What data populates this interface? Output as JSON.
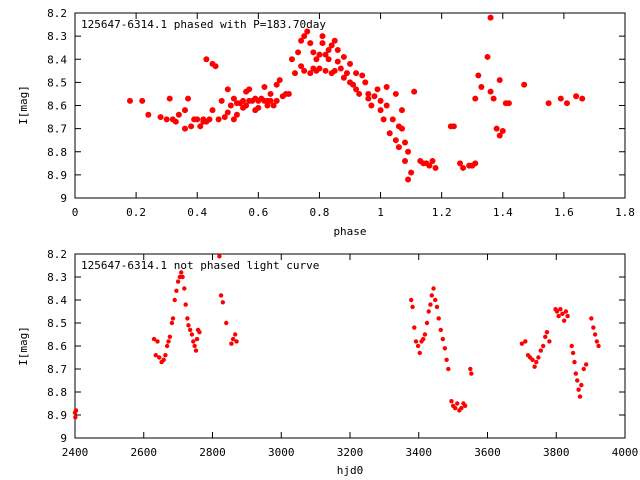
{
  "chart_data": [
    {
      "type": "scatter",
      "title": "125647-6314.1 phased with P=183.70day",
      "xlabel": "phase",
      "ylabel": "I[mag]",
      "xlim": [
        0,
        1.8
      ],
      "ylim": [
        9,
        8.2
      ],
      "y_inverted": true,
      "grid": false,
      "marker_color": "#ff0000",
      "xticks": [
        "0",
        "0.2",
        "0.4",
        "0.6",
        "0.8",
        "1",
        "1.2",
        "1.4",
        "1.6",
        "1.8"
      ],
      "yticks": [
        "8.2",
        "8.3",
        "8.4",
        "8.5",
        "8.6",
        "8.7",
        "8.8",
        "8.9",
        "9"
      ],
      "points": [
        [
          0.18,
          8.58
        ],
        [
          0.22,
          8.58
        ],
        [
          0.24,
          8.64
        ],
        [
          0.28,
          8.65
        ],
        [
          0.3,
          8.66
        ],
        [
          0.31,
          8.57
        ],
        [
          0.32,
          8.66
        ],
        [
          0.33,
          8.67
        ],
        [
          0.34,
          8.64
        ],
        [
          0.36,
          8.62
        ],
        [
          0.36,
          8.7
        ],
        [
          0.37,
          8.57
        ],
        [
          0.38,
          8.69
        ],
        [
          0.39,
          8.66
        ],
        [
          0.4,
          8.66
        ],
        [
          0.41,
          8.69
        ],
        [
          0.42,
          8.66
        ],
        [
          0.42,
          8.67
        ],
        [
          0.43,
          8.67
        ],
        [
          0.43,
          8.4
        ],
        [
          0.44,
          8.66
        ],
        [
          0.45,
          8.62
        ],
        [
          0.45,
          8.42
        ],
        [
          0.46,
          8.43
        ],
        [
          0.47,
          8.66
        ],
        [
          0.48,
          8.58
        ],
        [
          0.49,
          8.65
        ],
        [
          0.5,
          8.53
        ],
        [
          0.5,
          8.63
        ],
        [
          0.51,
          8.6
        ],
        [
          0.52,
          8.57
        ],
        [
          0.52,
          8.66
        ],
        [
          0.53,
          8.59
        ],
        [
          0.53,
          8.64
        ],
        [
          0.54,
          8.59
        ],
        [
          0.55,
          8.58
        ],
        [
          0.55,
          8.61
        ],
        [
          0.56,
          8.54
        ],
        [
          0.56,
          8.6
        ],
        [
          0.57,
          8.53
        ],
        [
          0.57,
          8.58
        ],
        [
          0.58,
          8.58
        ],
        [
          0.59,
          8.57
        ],
        [
          0.59,
          8.62
        ],
        [
          0.6,
          8.58
        ],
        [
          0.6,
          8.61
        ],
        [
          0.61,
          8.57
        ],
        [
          0.62,
          8.58
        ],
        [
          0.62,
          8.52
        ],
        [
          0.63,
          8.58
        ],
        [
          0.63,
          8.6
        ],
        [
          0.64,
          8.58
        ],
        [
          0.64,
          8.55
        ],
        [
          0.65,
          8.6
        ],
        [
          0.66,
          8.58
        ],
        [
          0.66,
          8.51
        ],
        [
          0.67,
          8.49
        ],
        [
          0.68,
          8.56
        ],
        [
          0.69,
          8.55
        ],
        [
          0.7,
          8.55
        ],
        [
          0.71,
          8.4
        ],
        [
          0.72,
          8.46
        ],
        [
          0.73,
          8.37
        ],
        [
          0.74,
          8.43
        ],
        [
          0.74,
          8.32
        ],
        [
          0.75,
          8.45
        ],
        [
          0.75,
          8.3
        ],
        [
          0.76,
          8.28
        ],
        [
          0.77,
          8.46
        ],
        [
          0.77,
          8.33
        ],
        [
          0.78,
          8.44
        ],
        [
          0.78,
          8.37
        ],
        [
          0.79,
          8.45
        ],
        [
          0.79,
          8.4
        ],
        [
          0.8,
          8.44
        ],
        [
          0.8,
          8.38
        ],
        [
          0.81,
          8.33
        ],
        [
          0.81,
          8.3
        ],
        [
          0.82,
          8.45
        ],
        [
          0.82,
          8.38
        ],
        [
          0.83,
          8.4
        ],
        [
          0.83,
          8.36
        ],
        [
          0.84,
          8.46
        ],
        [
          0.84,
          8.34
        ],
        [
          0.85,
          8.45
        ],
        [
          0.85,
          8.32
        ],
        [
          0.86,
          8.41
        ],
        [
          0.86,
          8.36
        ],
        [
          0.87,
          8.44
        ],
        [
          0.88,
          8.48
        ],
        [
          0.88,
          8.39
        ],
        [
          0.89,
          8.46
        ],
        [
          0.9,
          8.42
        ],
        [
          0.9,
          8.5
        ],
        [
          0.91,
          8.51
        ],
        [
          0.92,
          8.53
        ],
        [
          0.92,
          8.46
        ],
        [
          0.93,
          8.55
        ],
        [
          0.94,
          8.47
        ],
        [
          0.95,
          8.5
        ],
        [
          0.96,
          8.57
        ],
        [
          0.96,
          8.55
        ],
        [
          0.97,
          8.6
        ],
        [
          0.98,
          8.56
        ],
        [
          0.99,
          8.53
        ],
        [
          1.0,
          8.62
        ],
        [
          1.0,
          8.58
        ],
        [
          1.01,
          8.66
        ],
        [
          1.02,
          8.52
        ],
        [
          1.02,
          8.6
        ],
        [
          1.03,
          8.72
        ],
        [
          1.04,
          8.66
        ],
        [
          1.05,
          8.75
        ],
        [
          1.05,
          8.55
        ],
        [
          1.06,
          8.78
        ],
        [
          1.06,
          8.69
        ],
        [
          1.07,
          8.7
        ],
        [
          1.07,
          8.62
        ],
        [
          1.08,
          8.76
        ],
        [
          1.08,
          8.84
        ],
        [
          1.09,
          8.8
        ],
        [
          1.09,
          8.92
        ],
        [
          1.1,
          8.89
        ],
        [
          1.11,
          8.54
        ],
        [
          1.13,
          8.84
        ],
        [
          1.14,
          8.85
        ],
        [
          1.15,
          8.85
        ],
        [
          1.16,
          8.86
        ],
        [
          1.17,
          8.84
        ],
        [
          1.18,
          8.87
        ],
        [
          1.23,
          8.69
        ],
        [
          1.24,
          8.69
        ],
        [
          1.26,
          8.85
        ],
        [
          1.27,
          8.87
        ],
        [
          1.29,
          8.86
        ],
        [
          1.3,
          8.86
        ],
        [
          1.31,
          8.85
        ],
        [
          1.31,
          8.57
        ],
        [
          1.32,
          8.47
        ],
        [
          1.33,
          8.52
        ],
        [
          1.35,
          8.39
        ],
        [
          1.36,
          8.22
        ],
        [
          1.36,
          8.54
        ],
        [
          1.37,
          8.57
        ],
        [
          1.38,
          8.7
        ],
        [
          1.39,
          8.73
        ],
        [
          1.39,
          8.49
        ],
        [
          1.4,
          8.71
        ],
        [
          1.41,
          8.59
        ],
        [
          1.42,
          8.59
        ],
        [
          1.47,
          8.51
        ],
        [
          1.55,
          8.59
        ],
        [
          1.59,
          8.57
        ],
        [
          1.61,
          8.59
        ],
        [
          1.64,
          8.56
        ],
        [
          1.66,
          8.57
        ]
      ]
    },
    {
      "type": "scatter",
      "title": "125647-6314.1 not phased light curve",
      "xlabel": "hjd0",
      "ylabel": "I[mag]",
      "xlim": [
        2400,
        4000
      ],
      "ylim": [
        9,
        8.2
      ],
      "y_inverted": true,
      "grid": false,
      "marker_color": "#ff0000",
      "xticks": [
        "2400",
        "2600",
        "2800",
        "3000",
        "3200",
        "3400",
        "3600",
        "3800",
        "4000"
      ],
      "yticks": [
        "8.2",
        "8.3",
        "8.4",
        "8.5",
        "8.6",
        "8.7",
        "8.8",
        "8.9",
        "9"
      ],
      "points": [
        [
          2400,
          8.89
        ],
        [
          2401,
          8.91
        ],
        [
          2403,
          8.88
        ],
        [
          2630,
          8.57
        ],
        [
          2635,
          8.64
        ],
        [
          2640,
          8.58
        ],
        [
          2645,
          8.65
        ],
        [
          2652,
          8.67
        ],
        [
          2658,
          8.66
        ],
        [
          2663,
          8.64
        ],
        [
          2668,
          8.6
        ],
        [
          2672,
          8.58
        ],
        [
          2676,
          8.56
        ],
        [
          2682,
          8.5
        ],
        [
          2685,
          8.48
        ],
        [
          2690,
          8.4
        ],
        [
          2695,
          8.36
        ],
        [
          2700,
          8.32
        ],
        [
          2705,
          8.3
        ],
        [
          2709,
          8.28
        ],
        [
          2713,
          8.3
        ],
        [
          2718,
          8.35
        ],
        [
          2722,
          8.42
        ],
        [
          2727,
          8.48
        ],
        [
          2730,
          8.51
        ],
        [
          2735,
          8.53
        ],
        [
          2740,
          8.55
        ],
        [
          2744,
          8.58
        ],
        [
          2748,
          8.6
        ],
        [
          2752,
          8.62
        ],
        [
          2755,
          8.57
        ],
        [
          2758,
          8.53
        ],
        [
          2762,
          8.54
        ],
        [
          2820,
          8.21
        ],
        [
          2825,
          8.38
        ],
        [
          2830,
          8.41
        ],
        [
          2840,
          8.5
        ],
        [
          2855,
          8.59
        ],
        [
          2860,
          8.57
        ],
        [
          2866,
          8.55
        ],
        [
          2870,
          8.58
        ],
        [
          3378,
          8.4
        ],
        [
          3382,
          8.43
        ],
        [
          3387,
          8.52
        ],
        [
          3392,
          8.58
        ],
        [
          3398,
          8.6
        ],
        [
          3403,
          8.63
        ],
        [
          3408,
          8.58
        ],
        [
          3413,
          8.57
        ],
        [
          3418,
          8.55
        ],
        [
          3424,
          8.5
        ],
        [
          3429,
          8.45
        ],
        [
          3434,
          8.42
        ],
        [
          3438,
          8.38
        ],
        [
          3443,
          8.35
        ],
        [
          3448,
          8.4
        ],
        [
          3453,
          8.43
        ],
        [
          3458,
          8.48
        ],
        [
          3464,
          8.53
        ],
        [
          3470,
          8.57
        ],
        [
          3476,
          8.61
        ],
        [
          3481,
          8.66
        ],
        [
          3486,
          8.7
        ],
        [
          3495,
          8.84
        ],
        [
          3500,
          8.86
        ],
        [
          3506,
          8.87
        ],
        [
          3512,
          8.85
        ],
        [
          3518,
          8.88
        ],
        [
          3524,
          8.87
        ],
        [
          3530,
          8.85
        ],
        [
          3535,
          8.86
        ],
        [
          3550,
          8.7
        ],
        [
          3553,
          8.72
        ],
        [
          3700,
          8.59
        ],
        [
          3710,
          8.58
        ],
        [
          3718,
          8.64
        ],
        [
          3724,
          8.65
        ],
        [
          3731,
          8.66
        ],
        [
          3737,
          8.69
        ],
        [
          3742,
          8.67
        ],
        [
          3748,
          8.65
        ],
        [
          3755,
          8.62
        ],
        [
          3762,
          8.6
        ],
        [
          3768,
          8.56
        ],
        [
          3773,
          8.54
        ],
        [
          3780,
          8.58
        ],
        [
          3798,
          8.44
        ],
        [
          3802,
          8.45
        ],
        [
          3807,
          8.47
        ],
        [
          3812,
          8.44
        ],
        [
          3818,
          8.46
        ],
        [
          3823,
          8.49
        ],
        [
          3828,
          8.45
        ],
        [
          3833,
          8.47
        ],
        [
          3845,
          8.6
        ],
        [
          3849,
          8.63
        ],
        [
          3853,
          8.67
        ],
        [
          3857,
          8.72
        ],
        [
          3861,
          8.75
        ],
        [
          3865,
          8.79
        ],
        [
          3869,
          8.82
        ],
        [
          3873,
          8.77
        ],
        [
          3880,
          8.7
        ],
        [
          3887,
          8.68
        ],
        [
          3902,
          8.48
        ],
        [
          3908,
          8.52
        ],
        [
          3913,
          8.55
        ],
        [
          3918,
          8.58
        ],
        [
          3923,
          8.6
        ]
      ]
    }
  ]
}
